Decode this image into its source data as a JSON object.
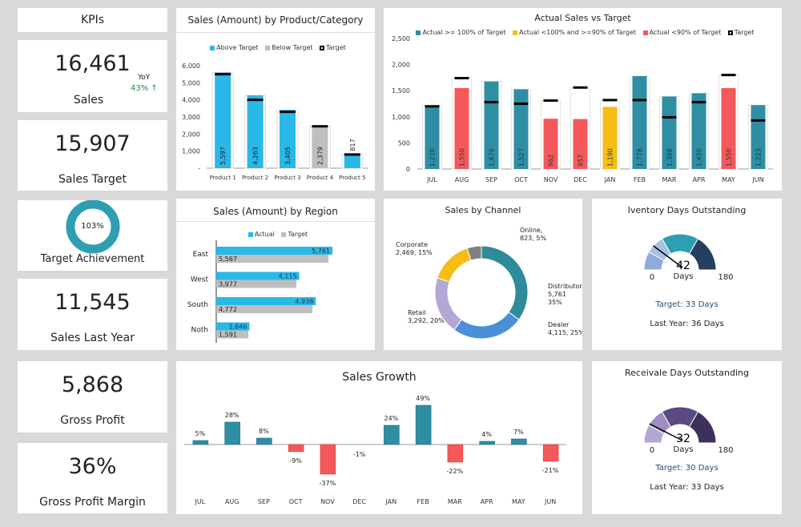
{
  "kpis": {
    "header": "KPIs",
    "sales": {
      "value": "16,461",
      "label": "Sales",
      "yoy_label": "YoY",
      "yoy_value": "43% ↑"
    },
    "sales_target": {
      "value": "15,907",
      "label": "Sales Target"
    },
    "target_achievement": {
      "value": "103%",
      "label": "Target Achievement",
      "fraction": 1.03
    },
    "sales_last_year": {
      "value": "11,545",
      "label": "Sales Last Year"
    },
    "gross_profit": {
      "value": "5,868",
      "label": "Gross Profit"
    },
    "gross_profit_margin": {
      "value": "36%",
      "label": "Gross Profit Margin"
    }
  },
  "colors": {
    "above": "#29b8e8",
    "below": "#bfbfbf",
    "teal": "#2e8ea3",
    "yellow": "#f6bd16",
    "red": "#f4585a",
    "green": "#1e8c45"
  },
  "chart_data": [
    {
      "type": "bar",
      "title": "Sales (Amount) by Product/Category",
      "categories": [
        "Product 1",
        "Product 2",
        "Product 3",
        "Product 4",
        "Product 5"
      ],
      "series": [
        {
          "name": "Above Target / Below Target",
          "values": [
            5597,
            4263,
            3405,
            2379,
            817
          ]
        },
        {
          "name": "Target",
          "values": [
            5500,
            4000,
            3300,
            2450,
            800
          ]
        }
      ],
      "legend": [
        "Above Target",
        "Below Target",
        "Target"
      ],
      "yticks": [
        "-",
        "1,000",
        "2,000",
        "3,000",
        "4,000",
        "5,000",
        "6,000"
      ],
      "ylim": [
        0,
        6000
      ],
      "data_labels": [
        "5,597",
        "4,263",
        "3,405",
        "2,379",
        "817"
      ]
    },
    {
      "type": "bar",
      "title": "Actual Sales vs Target",
      "categories": [
        "JUL",
        "AUG",
        "SEP",
        "OCT",
        "NOV",
        "DEC",
        "JAN",
        "FEB",
        "MAR",
        "APR",
        "MAY",
        "JUN"
      ],
      "series": [
        {
          "name": "Actual",
          "values": [
            1210,
            1550,
            1676,
            1527,
            962,
            957,
            1190,
            1778,
            1388,
            1450,
            1550,
            1223
          ]
        },
        {
          "name": "Target",
          "values": [
            1200,
            1740,
            1280,
            1250,
            1310,
            1560,
            1320,
            1320,
            990,
            1280,
            1800,
            930
          ]
        }
      ],
      "legend": [
        "Actual >= 100% of Target",
        "Actual <100% and >=90% of Target",
        "Actual <90% of Target",
        "Target"
      ],
      "yticks": [
        "0",
        "500",
        "1,000",
        "1,500",
        "2,000",
        "2,500"
      ],
      "ylim": [
        0,
        2500
      ],
      "data_labels": [
        "1,210",
        "1,550",
        "1,676",
        "1,527",
        "962",
        "957",
        "1,190",
        "1,778",
        "1,388",
        "1,450",
        "1,550",
        "1,223"
      ]
    },
    {
      "type": "bar",
      "orientation": "horizontal",
      "title": "Sales (Amount) by Region",
      "categories": [
        "East",
        "West",
        "South",
        "Noth"
      ],
      "series": [
        {
          "name": "Actual",
          "values": [
            5761,
            4115,
            4938,
            1646
          ],
          "labels": [
            "5,761",
            "4,115",
            "4,938",
            "1,646"
          ]
        },
        {
          "name": "Target",
          "values": [
            5567,
            3977,
            4772,
            1591
          ],
          "labels": [
            "5,567",
            "3,977",
            "4,772",
            "1,591"
          ]
        }
      ]
    },
    {
      "type": "pie",
      "donut": true,
      "title": "Sales by Channel",
      "slices": [
        {
          "name": "Distributor",
          "value": 5761,
          "pct": "35%",
          "label": "Distributor\n5,761\n35%",
          "color": "#2e8b9a"
        },
        {
          "name": "Dealer",
          "value": 4115,
          "pct": "25%",
          "label": "Dealer\n4,115, 25%",
          "color": "#4a8fd8"
        },
        {
          "name": "Retail",
          "value": 3292,
          "pct": "20%",
          "label": "Retail\n3,292, 20%",
          "color": "#b4a7d6"
        },
        {
          "name": "Corporate",
          "value": 2469,
          "pct": "15%",
          "label": "Corporate\n2,469, 15%",
          "color": "#f6bd16"
        },
        {
          "name": "Online",
          "value": 823,
          "pct": "5%",
          "label": "Online,\n823, 5%",
          "color": "#808080"
        }
      ]
    },
    {
      "type": "bar",
      "title": "Sales Growth",
      "categories": [
        "JUL",
        "AUG",
        "SEP",
        "OCT",
        "NOV",
        "DEC",
        "JAN",
        "FEB",
        "MAR",
        "APR",
        "MAY",
        "JUN"
      ],
      "values": [
        5,
        28,
        8,
        -9,
        -37,
        -1,
        24,
        49,
        -22,
        4,
        7,
        -21
      ],
      "data_labels": [
        "5%",
        "28%",
        "8%",
        "-9%",
        "-37%",
        "-1%",
        "24%",
        "49%",
        "-22%",
        "4%",
        "7%",
        "-21%"
      ]
    }
  ],
  "gauges": [
    {
      "title": "Iventory Days Outstanding",
      "value": 42,
      "value_label": "42",
      "unit": "Days",
      "min": "0",
      "max": "180",
      "target": "Target: 33 Days",
      "last_year": "Last Year: 36 Days",
      "colors": [
        "#8eaadb",
        "#a7bfe2",
        "#2e9fb3",
        "#243f60"
      ]
    },
    {
      "title": "Receivale Days Outstanding",
      "value": 32,
      "value_label": "32",
      "unit": "Days",
      "min": "0",
      "max": "180",
      "target": "Target: 30 Days",
      "last_year": "Last Year: 33 Days",
      "colors": [
        "#b4a7d6",
        "#a08cc4",
        "#5b4a82",
        "#3e2f5b"
      ]
    }
  ]
}
